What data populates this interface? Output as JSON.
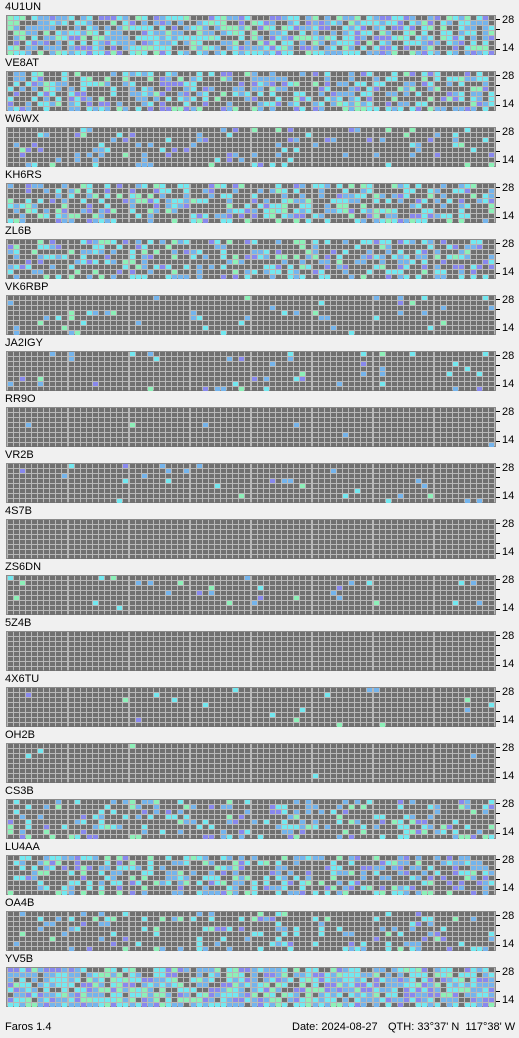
{
  "app": {
    "name": "Faros 1.4"
  },
  "status": {
    "date": "Date: 2024-08-27",
    "qth": "QTH: 33°37' N  117°38' W"
  },
  "axis": {
    "top_label": "28",
    "bottom_label": "14"
  },
  "palette": {
    "off": "#707070",
    "grid": "#b8b8b8",
    "cyan": "#72e8f0",
    "blue": "#74b4ec",
    "green": "#8cf0b8",
    "purple": "#8888ee"
  },
  "beacons": [
    {
      "callsign": "4U1UN",
      "level": 0.75
    },
    {
      "callsign": "VE8AT",
      "level": 0.5
    },
    {
      "callsign": "W6WX",
      "level": 0.14
    },
    {
      "callsign": "KH6RS",
      "level": 0.48
    },
    {
      "callsign": "ZL6B",
      "level": 0.4
    },
    {
      "callsign": "VK6RBP",
      "level": 0.09
    },
    {
      "callsign": "JA2IGY",
      "level": 0.09
    },
    {
      "callsign": "RR9O",
      "level": 0.01
    },
    {
      "callsign": "VR2B",
      "level": 0.05
    },
    {
      "callsign": "4S7B",
      "level": 0.0
    },
    {
      "callsign": "ZS6DN",
      "level": 0.05
    },
    {
      "callsign": "5Z4B",
      "level": 0.0
    },
    {
      "callsign": "4X6TU",
      "level": 0.03
    },
    {
      "callsign": "OH2B",
      "level": 0.01
    },
    {
      "callsign": "CS3B",
      "level": 0.3
    },
    {
      "callsign": "LU4AA",
      "level": 0.45
    },
    {
      "callsign": "OA4B",
      "level": 0.2
    },
    {
      "callsign": "YV5B",
      "level": 0.8
    }
  ]
}
